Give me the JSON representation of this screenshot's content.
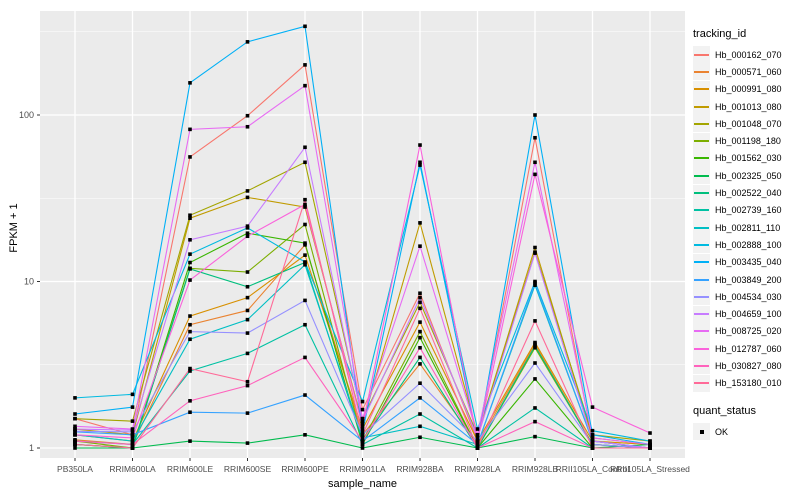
{
  "chart_data": {
    "type": "line",
    "title": "",
    "xlabel": "sample_name",
    "ylabel": "FPKM + 1",
    "y_scale": "log10",
    "ylim": [
      1,
      400
    ],
    "y_ticks": [
      1,
      10,
      100
    ],
    "y_tick_labels": [
      "1",
      "10",
      "100"
    ],
    "y_minor_ticks": [
      3.162,
      31.62,
      316.2
    ],
    "grid": true,
    "legend_position": "right",
    "point_shape": "filled-square",
    "point_color": "#000000",
    "categories": [
      "PB350LA",
      "RRIM600LA",
      "RRIM600LE",
      "RRIM600SE",
      "RRIM600PE",
      "RRIM901LA",
      "RRIM928BA",
      "RRIM928LA",
      "RRIM928LB",
      "RRII105LA_Control",
      "RRII105LA_Stressed"
    ],
    "series": [
      {
        "name": "Hb_000162_070",
        "color": "#F8766D",
        "values": [
          1.5,
          1.2,
          56,
          99,
          200,
          1.7,
          8.5,
          1.1,
          73,
          1.1,
          1.0
        ]
      },
      {
        "name": "Hb_000571_060",
        "color": "#EA8331",
        "values": [
          1.12,
          1.05,
          5.5,
          6.7,
          16.6,
          1.2,
          3.2,
          1.05,
          4.2,
          1.05,
          1.0
        ]
      },
      {
        "name": "Hb_000991_080",
        "color": "#D89000",
        "values": [
          1.2,
          1.1,
          6.2,
          8.0,
          14.4,
          1.3,
          5.7,
          1.1,
          4.3,
          1.1,
          1.05
        ]
      },
      {
        "name": "Hb_001013_080",
        "color": "#C09B00",
        "values": [
          1.3,
          1.2,
          24,
          32,
          28,
          1.4,
          22.5,
          1.2,
          16,
          1.15,
          1.05
        ]
      },
      {
        "name": "Hb_001048_070",
        "color": "#A3A500",
        "values": [
          1.5,
          1.45,
          25,
          35,
          52,
          1.5,
          7.5,
          1.2,
          15,
          1.2,
          1.1
        ]
      },
      {
        "name": "Hb_001198_180",
        "color": "#7CAE00",
        "values": [
          1.1,
          1.0,
          12,
          11.4,
          22,
          1.1,
          5.0,
          1.0,
          4.0,
          1.05,
          1.0
        ]
      },
      {
        "name": "Hb_001562_030",
        "color": "#39B600",
        "values": [
          1.05,
          1.0,
          13,
          19.5,
          17,
          1.05,
          4.6,
          1.0,
          2.6,
          1.0,
          1.0
        ]
      },
      {
        "name": "Hb_002325_050",
        "color": "#00BB4E",
        "values": [
          1.0,
          1.0,
          1.1,
          1.07,
          1.2,
          1.0,
          1.16,
          1.0,
          1.17,
          1.0,
          1.05
        ]
      },
      {
        "name": "Hb_002522_040",
        "color": "#00BF7D",
        "values": [
          1.05,
          1.0,
          11.9,
          9.3,
          13,
          1.1,
          3.5,
          1.0,
          4.1,
          1.05,
          1.0
        ]
      },
      {
        "name": "Hb_002739_160",
        "color": "#00C1A3",
        "values": [
          1.1,
          1.05,
          2.9,
          3.7,
          5.5,
          1.05,
          1.6,
          1.0,
          1.74,
          1.0,
          1.0
        ]
      },
      {
        "name": "Hb_002811_110",
        "color": "#00BFC4",
        "values": [
          1.2,
          1.1,
          4.5,
          5.9,
          12.6,
          1.15,
          1.35,
          1.05,
          9.5,
          1.1,
          1.0
        ]
      },
      {
        "name": "Hb_002888_100",
        "color": "#00BAE0",
        "values": [
          2.0,
          2.1,
          14.6,
          21,
          13.1,
          1.9,
          50,
          1.3,
          10,
          1.27,
          1.1
        ]
      },
      {
        "name": "Hb_003435_040",
        "color": "#00B0F6",
        "values": [
          1.6,
          1.76,
          156,
          275,
          341,
          1.25,
          52,
          1.1,
          100,
          1.2,
          1.05
        ]
      },
      {
        "name": "Hb_003849_200",
        "color": "#35A2FF",
        "values": [
          1.25,
          1.2,
          1.64,
          1.62,
          2.08,
          1.1,
          2.0,
          1.05,
          9.8,
          1.1,
          1.0
        ]
      },
      {
        "name": "Hb_004534_030",
        "color": "#9590FF",
        "values": [
          1.26,
          1.25,
          5.0,
          4.9,
          7.7,
          1.2,
          2.45,
          1.1,
          3.24,
          1.05,
          1.0
        ]
      },
      {
        "name": "Hb_004659_100",
        "color": "#C77CFF",
        "values": [
          1.3,
          1.28,
          17.8,
          21.5,
          64,
          1.45,
          8.0,
          1.15,
          14.8,
          1.1,
          1.0
        ]
      },
      {
        "name": "Hb_008725_020",
        "color": "#E76BF3",
        "values": [
          1.35,
          1.3,
          82,
          85,
          150,
          1.5,
          16.3,
          1.2,
          52,
          1.15,
          1.05
        ]
      },
      {
        "name": "Hb_012787_060",
        "color": "#FA62DB",
        "values": [
          1.2,
          1.15,
          10.2,
          18.7,
          29,
          1.35,
          66,
          1.1,
          44,
          1.76,
          1.23
        ]
      },
      {
        "name": "Hb_030827_080",
        "color": "#FF62BC",
        "values": [
          1.1,
          1.05,
          1.92,
          2.37,
          3.5,
          1.1,
          4.0,
          1.0,
          1.44,
          1.0,
          1.0
        ]
      },
      {
        "name": "Hb_153180_010",
        "color": "#FF6A98",
        "values": [
          1.05,
          1.0,
          3.0,
          2.5,
          31,
          1.2,
          6.9,
          1.0,
          5.8,
          1.0,
          1.0
        ]
      }
    ]
  },
  "legend": {
    "tracking_title": "tracking_id",
    "quant_title": "quant_status",
    "quant_items": [
      {
        "label": "OK"
      }
    ]
  },
  "colors": {
    "panel_bg": "#EBEBEB",
    "grid": "#FFFFFF",
    "key_bg": "#F2F2F2",
    "tick_text": "#4D4D4D",
    "tick_mark": "#333333",
    "title_text": "#000000"
  }
}
